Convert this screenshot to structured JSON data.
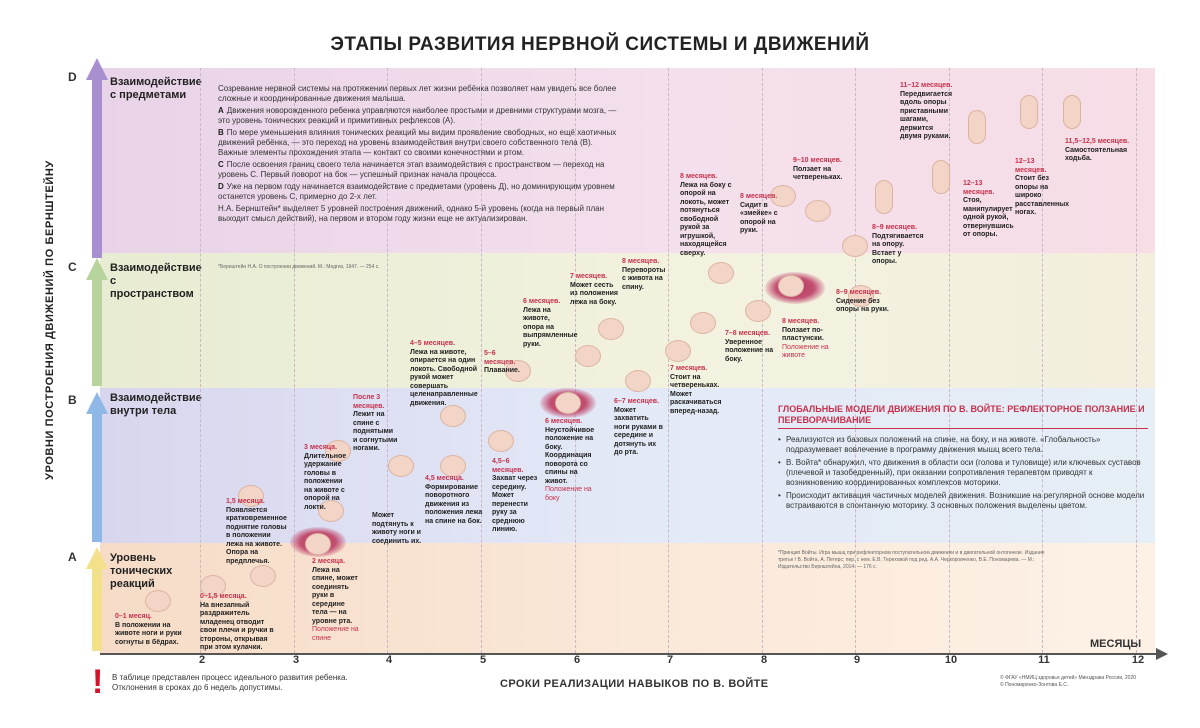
{
  "title": "ЭТАПЫ РАЗВИТИЯ НЕРВНОЙ СИСТЕМЫ И ДВИЖЕНИЙ",
  "y_axis_title": "УРОВНИ ПОСТРОЕНИЯ ДВИЖЕНИЙ ПО БЕРНШТЕЙНУ",
  "levels": [
    {
      "letter": "D",
      "name": "Взаимодействие с предметами",
      "color": "#a88fd0"
    },
    {
      "letter": "C",
      "name": "Взаимодействие с пространством",
      "color": "#b6d49c"
    },
    {
      "letter": "B",
      "name": "Взаимодействие внутри тела",
      "color": "#8fb8e6"
    },
    {
      "letter": "A",
      "name": "Уровень тонических реакций",
      "color": "#f3e08a"
    }
  ],
  "x_axis": {
    "ticks": [
      "2",
      "3",
      "4",
      "5",
      "6",
      "7",
      "8",
      "9",
      "10",
      "11",
      "12"
    ],
    "unit_label": "МЕСЯЦЫ",
    "title": "СРОКИ РЕАЛИЗАЦИИ НАВЫКОВ ПО В. ВОЙТЕ"
  },
  "intro": {
    "lead": "Созревание нервной системы на протяжении первых лет жизни ребёнка позволяет нам увидеть все более сложные и координированные движения малыша.",
    "items": [
      {
        "letter": "А",
        "text": "Движения новорожденного ребенка управляются наиболее простыми и древними структурами мозга, — это уровень тонических реакций и примитивных рефлексов (А)."
      },
      {
        "letter": "В",
        "text": "По мере уменьшения влияния тонических реакций мы видим проявление свободных, но ещё хаотичных движений ребёнка, — это переход на уровень взаимодействия внутри своего собственного тела (В). Важные элементы прохождения этапа — контакт со своими конечностями и ртом."
      },
      {
        "letter": "С",
        "text": "После освоения границ своего тела начинается этап взаимодействия с пространством — переход на уровень С. Первый поворот на бок — успешный признак начала процесса."
      },
      {
        "letter": "D",
        "text": "Уже на первом году начинается взаимодействие с предметами (уровень Д), но доминирующим уровнем останется уровень С, примерно до 2-х лет."
      }
    ],
    "closing": "Н.А. Бернштейн* выделяет 5 уровней построения движений, однако 5-й уровень (когда на первый план выходит смысл действий), на первом и втором году жизни еще не актуализирован.",
    "footnote": "*Бернштейн Н.А. О построении движений. М.: Медгиз, 1947. — 254 с."
  },
  "milestones": [
    {
      "age": "0–1 месяц.",
      "desc": "В положении на животе ноги и руки согнуты в бёдрах.",
      "extra": ""
    },
    {
      "age": "0–1,5 месяца.",
      "desc": "На внезапный раздражитель младенец отводит свои плечи и ручки в стороны, открывая при этом кулачки.",
      "extra": ""
    },
    {
      "age": "1,5 месяца.",
      "desc": "Появляется кратковременное поднятие головы в положении лежа на животе. Опора на предплечья.",
      "extra": ""
    },
    {
      "age": "2 месяца.",
      "desc": "Лежа на спине, может соединять руки в середине тела — на уровне рта.",
      "extra": "Положение на спине"
    },
    {
      "age": "3 месяца.",
      "desc": "Длительное удержание головы в положении на животе с опорой на локти.",
      "extra": ""
    },
    {
      "age": "",
      "desc": "Может подтянуть к животу ноги и соединить их.",
      "extra": ""
    },
    {
      "age": "После 3 месяцев.",
      "desc": "Лежит на спине с поднятыми и согнутыми ногами.",
      "extra": ""
    },
    {
      "age": "4,5 месяца.",
      "desc": "Формирование поворотного движения из положения лежа на спине на бок.",
      "extra": ""
    },
    {
      "age": "4–5 месяцев.",
      "desc": "Лежа на животе, опирается на один локоть. Свободной рукой может совершать целенаправленные движения.",
      "extra": ""
    },
    {
      "age": "5–6 месяцев.",
      "desc": "Плавание.",
      "extra": ""
    },
    {
      "age": "4,5–6 месяцев.",
      "desc": "Захват через середину. Может перенести руку за среднюю линию.",
      "extra": ""
    },
    {
      "age": "6 месяцев.",
      "desc": "Лежа на животе, опора на выпрямленные руки.",
      "extra": ""
    },
    {
      "age": "6 месяцев.",
      "desc": "Неустойчивое положение на боку. Координация поворота со спины на живот.",
      "extra": "Положение на боку"
    },
    {
      "age": "7 месяцев.",
      "desc": "Может сесть из положения лежа на боку.",
      "extra": ""
    },
    {
      "age": "6–7 месяцев.",
      "desc": "Может захватить ноги руками в середине и дотянуть их до рта.",
      "extra": ""
    },
    {
      "age": "8 месяцев.",
      "desc": "Перевороты с живота на спину.",
      "extra": ""
    },
    {
      "age": "7 месяцев.",
      "desc": "Стоит на четвереньках. Может раскачиваться вперед-назад.",
      "extra": ""
    },
    {
      "age": "7–8 месяцев.",
      "desc": "Уверенное положение на боку.",
      "extra": ""
    },
    {
      "age": "8 месяцев.",
      "desc": "Лежа на боку с опорой на локоть, может потянуться свободной рукой за игрушкой, находящейся сверху.",
      "extra": ""
    },
    {
      "age": "8 месяцев.",
      "desc": "Сидит в «змейке» с опорой на руки.",
      "extra": ""
    },
    {
      "age": "8 месяцев.",
      "desc": "Ползает по-пластунски.",
      "extra": "Положение на животе"
    },
    {
      "age": "9–10 месяцев.",
      "desc": "Ползает на четвереньках.",
      "extra": ""
    },
    {
      "age": "8–9 месяцев.",
      "desc": "Подтягивается на опору. Встает у опоры.",
      "extra": ""
    },
    {
      "age": "8–9 месяцев.",
      "desc": "Сидение без опоры на руки.",
      "extra": ""
    },
    {
      "age": "11–12 месяцев.",
      "desc": "Передвигается вдоль опоры приставными шагами, держится двумя руками.",
      "extra": ""
    },
    {
      "age": "12–13 месяцев.",
      "desc": "Стоя, манипулирует одной рукой, отвернувшись от опоры.",
      "extra": ""
    },
    {
      "age": "12–13 месяцев.",
      "desc": "Стоит без опоры на широко расставленных ногах.",
      "extra": ""
    },
    {
      "age": "11,5–12,5 месяцев.",
      "desc": "Самостоятельная ходьба.",
      "extra": ""
    }
  ],
  "vojta": {
    "title": "ГЛОБАЛЬНЫЕ МОДЕЛИ ДВИЖЕНИЯ ПО В. ВОЙТЕ: РЕФЛЕКТОРНОЕ ПОЛЗАНИЕ И ПЕРЕВОРАЧИВАНИЕ",
    "bullets": [
      "Реализуются из базовых положений на спине, на боку, и на животе. «Глобальность» подразумевает вовлечение в программу движения мышц всего тела.",
      "В. Войта* обнаружил, что движения в области оси (голова и туловище) или ключевых суставов (плечевой и тазобедренный), при оказании сопротивления терапевтом приводят к возникновению координированных комплексов моторики.",
      "Происходит активация частичных моделей движения. Возникшие на регулярной основе модели встраиваются в спонтанную моторику. 3 основных положения выделены цветом."
    ],
    "footnote": "*Принцип Войты. Игра мышц при рефлекторном поступательном движении и в двигательной онтогенезе. Издание третье / В. Войта, А. Петерс; пер. с нем. Е.В. Тереховой под ред. А.А. Черкоровченко, В.Е. Пономарева. — М.: Издательство Бернштейна, 2014. — 176 с."
  },
  "warning_symbol": "!",
  "note": "В таблице представлен процесс идеального развития ребенка. Отклонения в сроках до 6 недель допустимы.",
  "copyright": [
    "© ФГАУ «НМИЦ здоровья детей» Минздрава России, 2020",
    "© Пономаренко-Зонтова Е.С."
  ],
  "colors": {
    "accent_red": "#c6314c",
    "axis": "#555555"
  }
}
